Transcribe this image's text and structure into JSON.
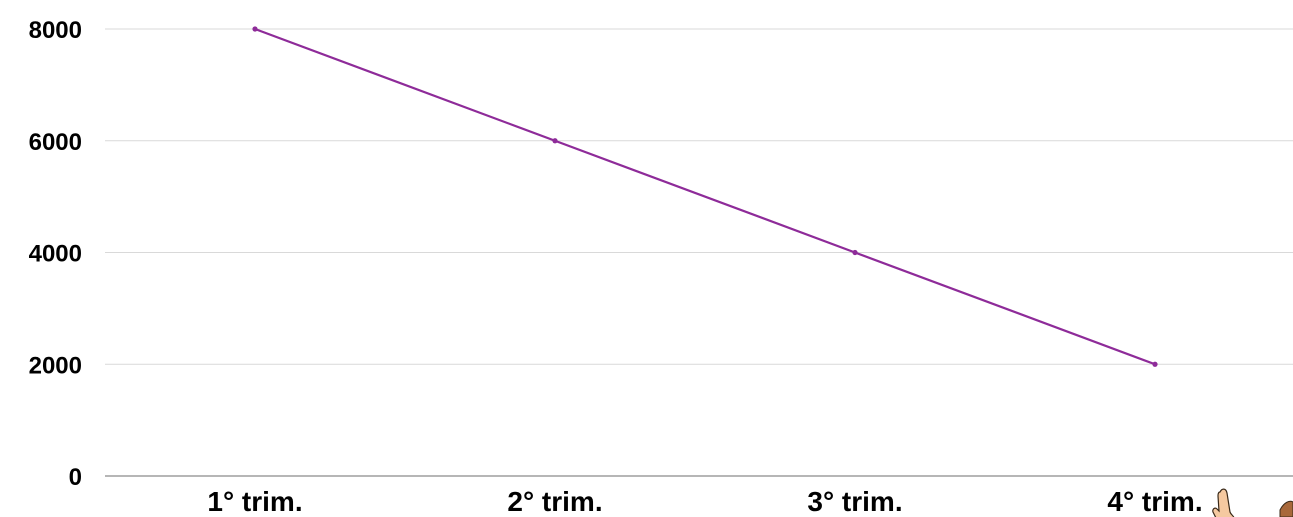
{
  "chart_data": {
    "type": "line",
    "categories": [
      "1° trim.",
      "2° trim.",
      "3° trim.",
      "4° trim."
    ],
    "series": [
      {
        "values": [
          8000,
          6000,
          4000,
          2000
        ],
        "color": "#8e2b99"
      }
    ],
    "yticks": [
      "0",
      "2000",
      "4000",
      "6000",
      "8000"
    ],
    "ylim": [
      0,
      8000
    ],
    "grid": true,
    "legend": "none",
    "title": "",
    "xlabel": "",
    "ylabel": ""
  },
  "decor": {
    "cursor_icon": "pointing-hand-icon"
  }
}
